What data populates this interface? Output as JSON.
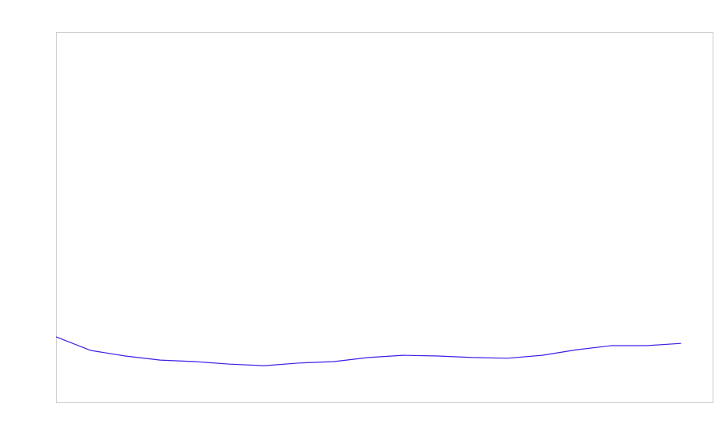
{
  "chart_data": {
    "type": "line",
    "categories": [
      null,
      null,
      null,
      null,
      null,
      null,
      null,
      null,
      null,
      null,
      null,
      null,
      null,
      null,
      null,
      null,
      null,
      null,
      null
    ],
    "series": [
      {
        "color": "#3f1fe6",
        "values": [
          17.7,
          14.0,
          12.5,
          11.4,
          11.0,
          10.3,
          9.9,
          10.6,
          11.0,
          12.1,
          12.7,
          12.5,
          12.1,
          11.9,
          12.7,
          14.2,
          15.3,
          15.3,
          15.9
        ]
      }
    ],
    "ylim": [
      0,
      100
    ]
  }
}
